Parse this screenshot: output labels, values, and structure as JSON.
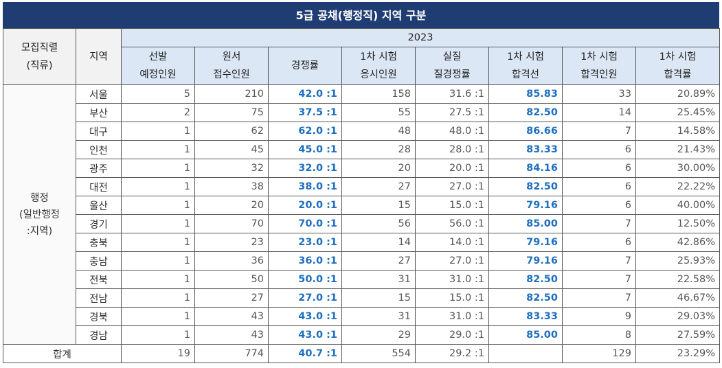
{
  "title": "5급 공채(행정직) 지역 구분",
  "header": {
    "col_group": "모집직렬\n(직류)",
    "col_region": "지역",
    "year": "2023",
    "columns": [
      "선발\n예정인원",
      "원서\n접수인원",
      "경쟁률",
      "1차 시험\n응시인원",
      "실질\n질경쟁률",
      "1차 시험\n합격선",
      "1차 시험\n합격인원",
      "1차 시험\n합격률"
    ]
  },
  "group_label": "행정\n(일반행정\n:지역)",
  "rows": [
    {
      "region": "서울",
      "planned": "5",
      "applied": "210",
      "ratio": "42.0 :1",
      "taken": "158",
      "real_ratio": "31.6 :1",
      "cutoff": "85.83",
      "passed": "33",
      "pass_rate": "20.89%"
    },
    {
      "region": "부산",
      "planned": "2",
      "applied": "75",
      "ratio": "37.5 :1",
      "taken": "55",
      "real_ratio": "27.5 :1",
      "cutoff": "82.50",
      "passed": "14",
      "pass_rate": "25.45%"
    },
    {
      "region": "대구",
      "planned": "1",
      "applied": "62",
      "ratio": "62.0 :1",
      "taken": "48",
      "real_ratio": "48.0 :1",
      "cutoff": "86.66",
      "passed": "7",
      "pass_rate": "14.58%"
    },
    {
      "region": "인천",
      "planned": "1",
      "applied": "45",
      "ratio": "45.0 :1",
      "taken": "28",
      "real_ratio": "28.0 :1",
      "cutoff": "83.33",
      "passed": "6",
      "pass_rate": "21.43%"
    },
    {
      "region": "광주",
      "planned": "1",
      "applied": "32",
      "ratio": "32.0 :1",
      "taken": "20",
      "real_ratio": "20.0 :1",
      "cutoff": "84.16",
      "passed": "6",
      "pass_rate": "30.00%"
    },
    {
      "region": "대전",
      "planned": "1",
      "applied": "38",
      "ratio": "38.0 :1",
      "taken": "27",
      "real_ratio": "27.0 :1",
      "cutoff": "82.50",
      "passed": "6",
      "pass_rate": "22.22%"
    },
    {
      "region": "울산",
      "planned": "1",
      "applied": "20",
      "ratio": "20.0 :1",
      "taken": "15",
      "real_ratio": "15.0 :1",
      "cutoff": "79.16",
      "passed": "6",
      "pass_rate": "40.00%"
    },
    {
      "region": "경기",
      "planned": "1",
      "applied": "70",
      "ratio": "70.0 :1",
      "taken": "56",
      "real_ratio": "56.0 :1",
      "cutoff": "85.00",
      "passed": "7",
      "pass_rate": "12.50%"
    },
    {
      "region": "충북",
      "planned": "1",
      "applied": "23",
      "ratio": "23.0 :1",
      "taken": "14",
      "real_ratio": "14.0 :1",
      "cutoff": "79.16",
      "passed": "6",
      "pass_rate": "42.86%"
    },
    {
      "region": "충남",
      "planned": "1",
      "applied": "36",
      "ratio": "36.0 :1",
      "taken": "27",
      "real_ratio": "27.0 :1",
      "cutoff": "79.16",
      "passed": "7",
      "pass_rate": "25.93%"
    },
    {
      "region": "전북",
      "planned": "1",
      "applied": "50",
      "ratio": "50.0 :1",
      "taken": "31",
      "real_ratio": "31.0 :1",
      "cutoff": "82.50",
      "passed": "7",
      "pass_rate": "22.58%"
    },
    {
      "region": "전남",
      "planned": "1",
      "applied": "27",
      "ratio": "27.0 :1",
      "taken": "15",
      "real_ratio": "15.0 :1",
      "cutoff": "82.50",
      "passed": "7",
      "pass_rate": "46.67%"
    },
    {
      "region": "경북",
      "planned": "1",
      "applied": "43",
      "ratio": "43.0 :1",
      "taken": "31",
      "real_ratio": "31.0 :1",
      "cutoff": "83.33",
      "passed": "9",
      "pass_rate": "29.03%"
    },
    {
      "region": "경남",
      "planned": "1",
      "applied": "43",
      "ratio": "43.0 :1",
      "taken": "29",
      "real_ratio": "29.0 :1",
      "cutoff": "85.00",
      "passed": "8",
      "pass_rate": "27.59%"
    }
  ],
  "total": {
    "label": "합계",
    "planned": "19",
    "applied": "774",
    "ratio": "40.7 :1",
    "taken": "554",
    "real_ratio": "29.2 :1",
    "cutoff": "",
    "passed": "129",
    "pass_rate": "23.29%"
  },
  "colors": {
    "title_bg": "#1f3c73",
    "highlight_text": "#1f6fbf",
    "header_blue": "#dbe7f5",
    "header_grey": "#f2f2f2"
  }
}
